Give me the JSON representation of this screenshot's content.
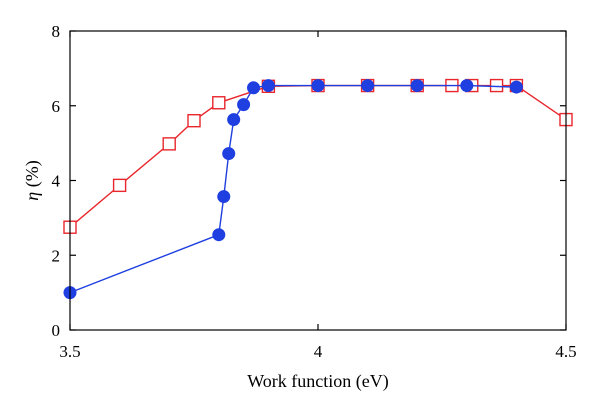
{
  "chart_data": {
    "type": "line",
    "xlabel": "Work function (eV)",
    "ylabel_symbol": "η",
    "ylabel_unit": " (%)",
    "xlim": [
      3.5,
      4.5
    ],
    "ylim": [
      0,
      8
    ],
    "xticks": [
      3.5,
      4,
      4.5
    ],
    "xtick_labels": [
      "3.5",
      "4",
      "4.5"
    ],
    "yticks": [
      0,
      2,
      4,
      6,
      8
    ],
    "ytick_labels": [
      "0",
      "2",
      "4",
      "6",
      "8"
    ],
    "grid": false,
    "series": [
      {
        "color": "#e8262b",
        "marker": "open-square",
        "x": [
          3.5,
          3.6,
          3.7,
          3.75,
          3.8,
          3.9,
          4.0,
          4.1,
          4.2,
          4.27,
          4.31,
          4.36,
          4.4,
          4.5
        ],
        "y": [
          2.75,
          3.87,
          4.98,
          5.6,
          6.08,
          6.52,
          6.54,
          6.54,
          6.54,
          6.54,
          6.54,
          6.54,
          6.54,
          5.63
        ]
      },
      {
        "color": "#1f3fe0",
        "marker": "filled-circle",
        "x": [
          3.5,
          3.8,
          3.81,
          3.82,
          3.83,
          3.85,
          3.87,
          3.9,
          4.0,
          4.1,
          4.2,
          4.3,
          4.4
        ],
        "y": [
          1.0,
          2.55,
          3.57,
          4.72,
          5.63,
          6.03,
          6.48,
          6.54,
          6.54,
          6.54,
          6.54,
          6.54,
          6.5
        ]
      }
    ]
  }
}
